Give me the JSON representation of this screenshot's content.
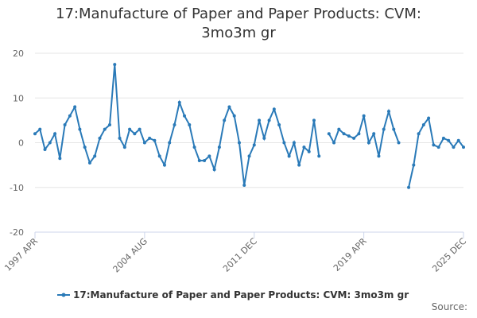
{
  "chart_data": {
    "type": "line",
    "title": "17:Manufacture of Paper and Paper Products: CVM: 3mo3m gr",
    "categories": [
      "1997 APR",
      null,
      null,
      null,
      null,
      null,
      null,
      null,
      null,
      null,
      null,
      null,
      null,
      null,
      null,
      null,
      null,
      null,
      null,
      null,
      null,
      null,
      "2004 AUG",
      null,
      null,
      null,
      null,
      null,
      null,
      null,
      null,
      null,
      null,
      null,
      null,
      null,
      null,
      null,
      null,
      null,
      null,
      null,
      null,
      null,
      "2011 DEC",
      null,
      null,
      null,
      null,
      null,
      null,
      null,
      null,
      null,
      null,
      null,
      null,
      null,
      null,
      null,
      null,
      null,
      null,
      null,
      null,
      null,
      "2019 APR",
      null,
      null,
      null,
      null,
      null,
      null,
      null,
      null,
      null,
      null,
      null,
      null,
      null,
      null,
      null,
      null,
      null,
      null,
      null,
      "2025 DEC"
    ],
    "series": [
      {
        "name": "17:Manufacture of Paper and Paper Products: CVM: 3mo3m gr",
        "color": "#2a7ab8",
        "values": [
          2,
          3,
          -1.5,
          0,
          2,
          -3.5,
          4,
          6,
          8,
          3,
          -1,
          -4.5,
          -3,
          1,
          3,
          4,
          17.5,
          1,
          -1,
          3,
          2,
          3,
          0,
          1,
          0.5,
          -3,
          -5,
          0,
          4,
          9,
          6,
          4,
          -1,
          -4,
          -4,
          -3,
          -6,
          -1,
          5,
          8,
          6,
          0,
          -9.5,
          -3,
          -0.5,
          5,
          1,
          5,
          7.5,
          4,
          0,
          -3,
          0,
          -5,
          -1,
          -2,
          5,
          -3,
          null,
          2,
          0,
          3,
          2,
          1.5,
          1,
          2,
          6,
          0,
          2,
          -3,
          3,
          7,
          3,
          0,
          null,
          -10,
          -5,
          2,
          4,
          5.5,
          -0.5,
          -1,
          1,
          0.5,
          -1,
          0.5,
          -1
        ]
      }
    ],
    "ylim": [
      -20,
      20
    ],
    "yticks": [
      -20,
      -10,
      0,
      10,
      20
    ],
    "grid": true,
    "legend": "bottom",
    "source": "Source:"
  }
}
